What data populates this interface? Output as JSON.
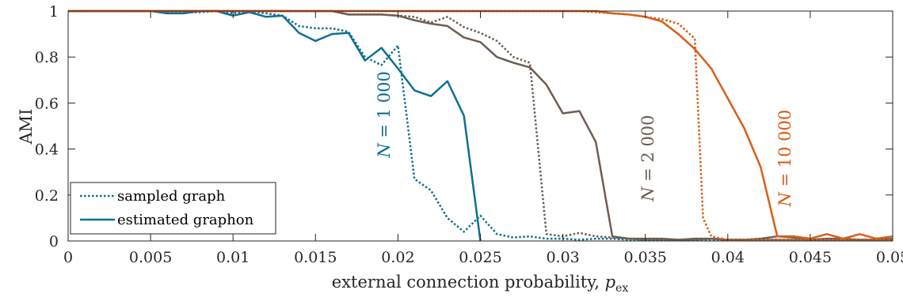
{
  "chart_data": {
    "type": "line",
    "title": "",
    "xlabel": "external connection probability, ",
    "xlabel_sub_base": "p",
    "xlabel_sub": "ex",
    "ylabel": "AMI",
    "xlim": [
      0,
      0.05
    ],
    "ylim": [
      0,
      1
    ],
    "xticks": [
      0,
      0.005,
      0.01,
      0.015,
      0.02,
      0.025,
      0.03,
      0.035,
      0.04,
      0.045,
      0.05
    ],
    "xtick_labels": [
      "0",
      "0.005",
      "0.01",
      "0.015",
      "0.02",
      "0.025",
      "0.03",
      "0.035",
      "0.04",
      "0.045",
      "0.05"
    ],
    "yticks": [
      0,
      0.2,
      0.4,
      0.6,
      0.8,
      1
    ],
    "ytick_labels": [
      "0",
      "0.2",
      "0.4",
      "0.6",
      "0.8",
      "1"
    ],
    "grid": false,
    "legend_position": "bottom-left",
    "legend": [
      {
        "label": "sampled graph",
        "style": "dotted"
      },
      {
        "label": "estimated graphon",
        "style": "solid"
      }
    ],
    "colors": {
      "N1000": "#0e6f94",
      "N2000": "#6e5d52",
      "N10000": "#d95e17"
    },
    "annotations": [
      {
        "text_var": "N",
        "text_rest": " = 1 000",
        "series": "N1000",
        "x": 0.0195,
        "y": 0.55
      },
      {
        "text_var": "N",
        "text_rest": " = 2 000",
        "series": "N2000",
        "x": 0.0355,
        "y": 0.36
      },
      {
        "text_var": "N",
        "text_rest": " = 10 000",
        "series": "N10000",
        "x": 0.0438,
        "y": 0.36
      }
    ],
    "series": [
      {
        "group": "N1000",
        "style": "dotted",
        "x": [
          0,
          0.001,
          0.002,
          0.003,
          0.004,
          0.005,
          0.006,
          0.007,
          0.008,
          0.009,
          0.01,
          0.011,
          0.012,
          0.013,
          0.014,
          0.015,
          0.016,
          0.017,
          0.018,
          0.019,
          0.02,
          0.021,
          0.022,
          0.023,
          0.024,
          0.025,
          0.026,
          0.027,
          0.028,
          0.029,
          0.03,
          0.031,
          0.032,
          0.033,
          0.034,
          0.035,
          0.036,
          0.037,
          0.038,
          0.039,
          0.04,
          0.041,
          0.042,
          0.043,
          0.044,
          0.045,
          0.046,
          0.047,
          0.048,
          0.049,
          0.05
        ],
        "y": [
          1,
          1,
          1,
          1,
          1,
          1,
          0.995,
          0.995,
          0.995,
          1,
          0.99,
          1,
          0.99,
          0.98,
          0.935,
          0.925,
          0.925,
          0.91,
          0.8,
          0.765,
          0.85,
          0.27,
          0.22,
          0.1,
          0.04,
          0.11,
          0.03,
          0.015,
          0.02,
          0.01,
          0.01,
          0.005,
          0.01,
          0.01,
          0.005,
          0.005,
          0.005,
          0.005,
          0.005,
          0.005,
          0.005,
          0.005,
          0.005,
          0.005,
          0.005,
          0.005,
          0.005,
          0.005,
          0.005,
          0.005,
          0.005
        ]
      },
      {
        "group": "N1000",
        "style": "solid",
        "x": [
          0,
          0.001,
          0.002,
          0.003,
          0.004,
          0.005,
          0.006,
          0.007,
          0.008,
          0.009,
          0.01,
          0.011,
          0.012,
          0.013,
          0.014,
          0.015,
          0.016,
          0.017,
          0.018,
          0.019,
          0.02,
          0.021,
          0.022,
          0.023,
          0.024,
          0.025
        ],
        "y": [
          1,
          1,
          1,
          1,
          1,
          1,
          0.99,
          0.99,
          1,
          1,
          0.98,
          0.995,
          0.975,
          0.98,
          0.905,
          0.87,
          0.9,
          0.905,
          0.785,
          0.84,
          0.75,
          0.655,
          0.63,
          0.695,
          0.545,
          0
        ]
      },
      {
        "group": "N2000",
        "style": "dotted",
        "x": [
          0,
          0.005,
          0.01,
          0.015,
          0.016,
          0.017,
          0.018,
          0.019,
          0.02,
          0.021,
          0.022,
          0.023,
          0.024,
          0.025,
          0.026,
          0.027,
          0.028,
          0.029,
          0.03,
          0.031,
          0.032,
          0.033,
          0.034,
          0.035,
          0.036,
          0.037,
          0.038,
          0.039,
          0.04,
          0.041,
          0.042,
          0.043,
          0.044,
          0.045,
          0.046,
          0.047,
          0.048,
          0.049,
          0.05
        ],
        "y": [
          1,
          1,
          1,
          1,
          1,
          0.985,
          0.985,
          0.985,
          0.98,
          0.975,
          0.95,
          0.975,
          0.93,
          0.905,
          0.87,
          0.8,
          0.775,
          0.03,
          0.02,
          0.035,
          0.02,
          0.015,
          0.01,
          0.005,
          0.005,
          0.005,
          0.005,
          0.01,
          0.005,
          0.005,
          0.005,
          0.005,
          0.005,
          0.005,
          0.005,
          0.005,
          0.005,
          0.005,
          0.005
        ]
      },
      {
        "group": "N2000",
        "style": "solid",
        "x": [
          0,
          0.005,
          0.01,
          0.015,
          0.016,
          0.017,
          0.018,
          0.019,
          0.02,
          0.021,
          0.022,
          0.023,
          0.024,
          0.025,
          0.026,
          0.027,
          0.028,
          0.029,
          0.03,
          0.031,
          0.032,
          0.033,
          0.034,
          0.035,
          0.036,
          0.037,
          0.038,
          0.039,
          0.04,
          0.041,
          0.042,
          0.043,
          0.044,
          0.045,
          0.046,
          0.047,
          0.048,
          0.049,
          0.05
        ],
        "y": [
          1,
          1,
          1,
          1,
          1,
          0.985,
          0.985,
          0.985,
          0.98,
          0.96,
          0.945,
          0.935,
          0.885,
          0.865,
          0.8,
          0.775,
          0.755,
          0.68,
          0.555,
          0.565,
          0.43,
          0.02,
          0.01,
          0.01,
          0.01,
          0.005,
          0.01,
          0.01,
          0.005,
          0.005,
          0.01,
          0.02,
          0.015,
          0.005,
          0.01,
          0.01,
          0.005,
          0.005,
          0.01
        ]
      },
      {
        "group": "N10000",
        "style": "dotted",
        "x": [
          0,
          0.005,
          0.01,
          0.015,
          0.02,
          0.025,
          0.03,
          0.031,
          0.032,
          0.033,
          0.034,
          0.035,
          0.036,
          0.037,
          0.038,
          0.0385,
          0.039,
          0.04,
          0.041,
          0.042,
          0.043,
          0.044,
          0.045,
          0.046,
          0.047,
          0.048,
          0.049,
          0.05
        ],
        "y": [
          1,
          1,
          1,
          1,
          1,
          1,
          1,
          1,
          0.995,
          0.99,
          0.985,
          0.975,
          0.965,
          0.945,
          0.88,
          0.1,
          0.02,
          0.005,
          0.005,
          0.005,
          0.005,
          0.005,
          0.005,
          0.005,
          0.005,
          0.005,
          0.005,
          0.005
        ]
      },
      {
        "group": "N10000",
        "style": "solid",
        "x": [
          0,
          0.005,
          0.01,
          0.015,
          0.02,
          0.025,
          0.03,
          0.031,
          0.032,
          0.033,
          0.034,
          0.035,
          0.036,
          0.037,
          0.038,
          0.039,
          0.04,
          0.041,
          0.042,
          0.043,
          0.044,
          0.045,
          0.046,
          0.047,
          0.048,
          0.049,
          0.05
        ],
        "y": [
          1,
          1,
          1,
          1,
          1,
          1,
          1,
          1,
          1,
          0.99,
          0.985,
          0.975,
          0.955,
          0.9,
          0.835,
          0.75,
          0.62,
          0.49,
          0.32,
          0.02,
          0.02,
          0.01,
          0.03,
          0.01,
          0.03,
          0.01,
          0.02
        ]
      }
    ]
  }
}
